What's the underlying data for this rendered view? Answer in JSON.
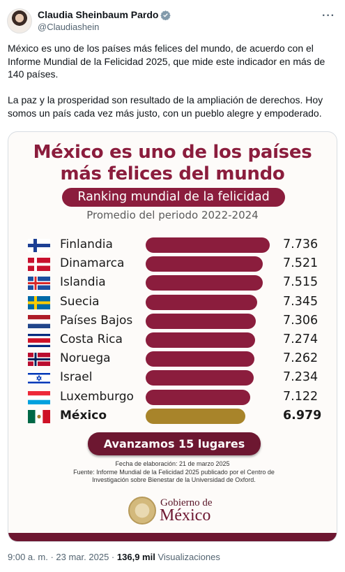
{
  "author": {
    "display_name": "Claudia Sheinbaum Pardo",
    "handle": "@Claudiashein"
  },
  "tweet": {
    "paragraph1": "México es uno de los países más felices del mundo, de acuerdo con el Informe Mundial de la Felicidad 2025, que mide este indicador en más de 140 países.",
    "paragraph2": "La paz y la prosperidad son resultado de la ampliación de derechos. Hoy somos un país cada vez más justo, con un pueblo alegre y empoderado."
  },
  "infographic": {
    "headline_line1": "México es uno de los países",
    "headline_line2": "más felices del mundo",
    "pill": "Ranking mundial de la felicidad",
    "subtitle": "Promedio del periodo 2022-2024",
    "advance": "Avanzamos 15 lugares",
    "fecha": "Fecha de elaboración: 21 de marzo 2025",
    "fuente": "Fuente: Informe Mundial de la Felicidad 2025 publicado por el Centro de Investigación sobre Bienestar de la Universidad de Oxford.",
    "gob_line1": "Gobierno de",
    "gob_line2": "México",
    "accent_color": "#8b1d3d",
    "highlight_color": "#a8842a"
  },
  "chart_data": {
    "type": "bar",
    "categories": [
      "Finlandia",
      "Dinamarca",
      "Islandia",
      "Suecia",
      "Países Bajos",
      "Costa Rica",
      "Noruega",
      "Israel",
      "Luxemburgo",
      "México"
    ],
    "values": [
      7.736,
      7.521,
      7.515,
      7.345,
      7.306,
      7.274,
      7.262,
      7.234,
      7.122,
      6.979
    ],
    "value_labels": [
      "7.736",
      "7.521",
      "7.515",
      "7.345",
      "7.306",
      "7.274",
      "7.262",
      "7.234",
      "7.122",
      "6.979"
    ],
    "flags": [
      "flag-finland",
      "flag-denmark",
      "flag-iceland",
      "flag-sweden",
      "flag-netherlands",
      "flag-costa-rica",
      "flag-norway",
      "flag-israel",
      "flag-luxembourg",
      "flag-mexico"
    ],
    "highlight": "México",
    "orientation": "horizontal"
  },
  "meta": {
    "time": "9:00 a. m.",
    "separator": "·",
    "date": "23 mar. 2025",
    "views": "136,9 mil",
    "views_label": "Visualizaciones"
  }
}
